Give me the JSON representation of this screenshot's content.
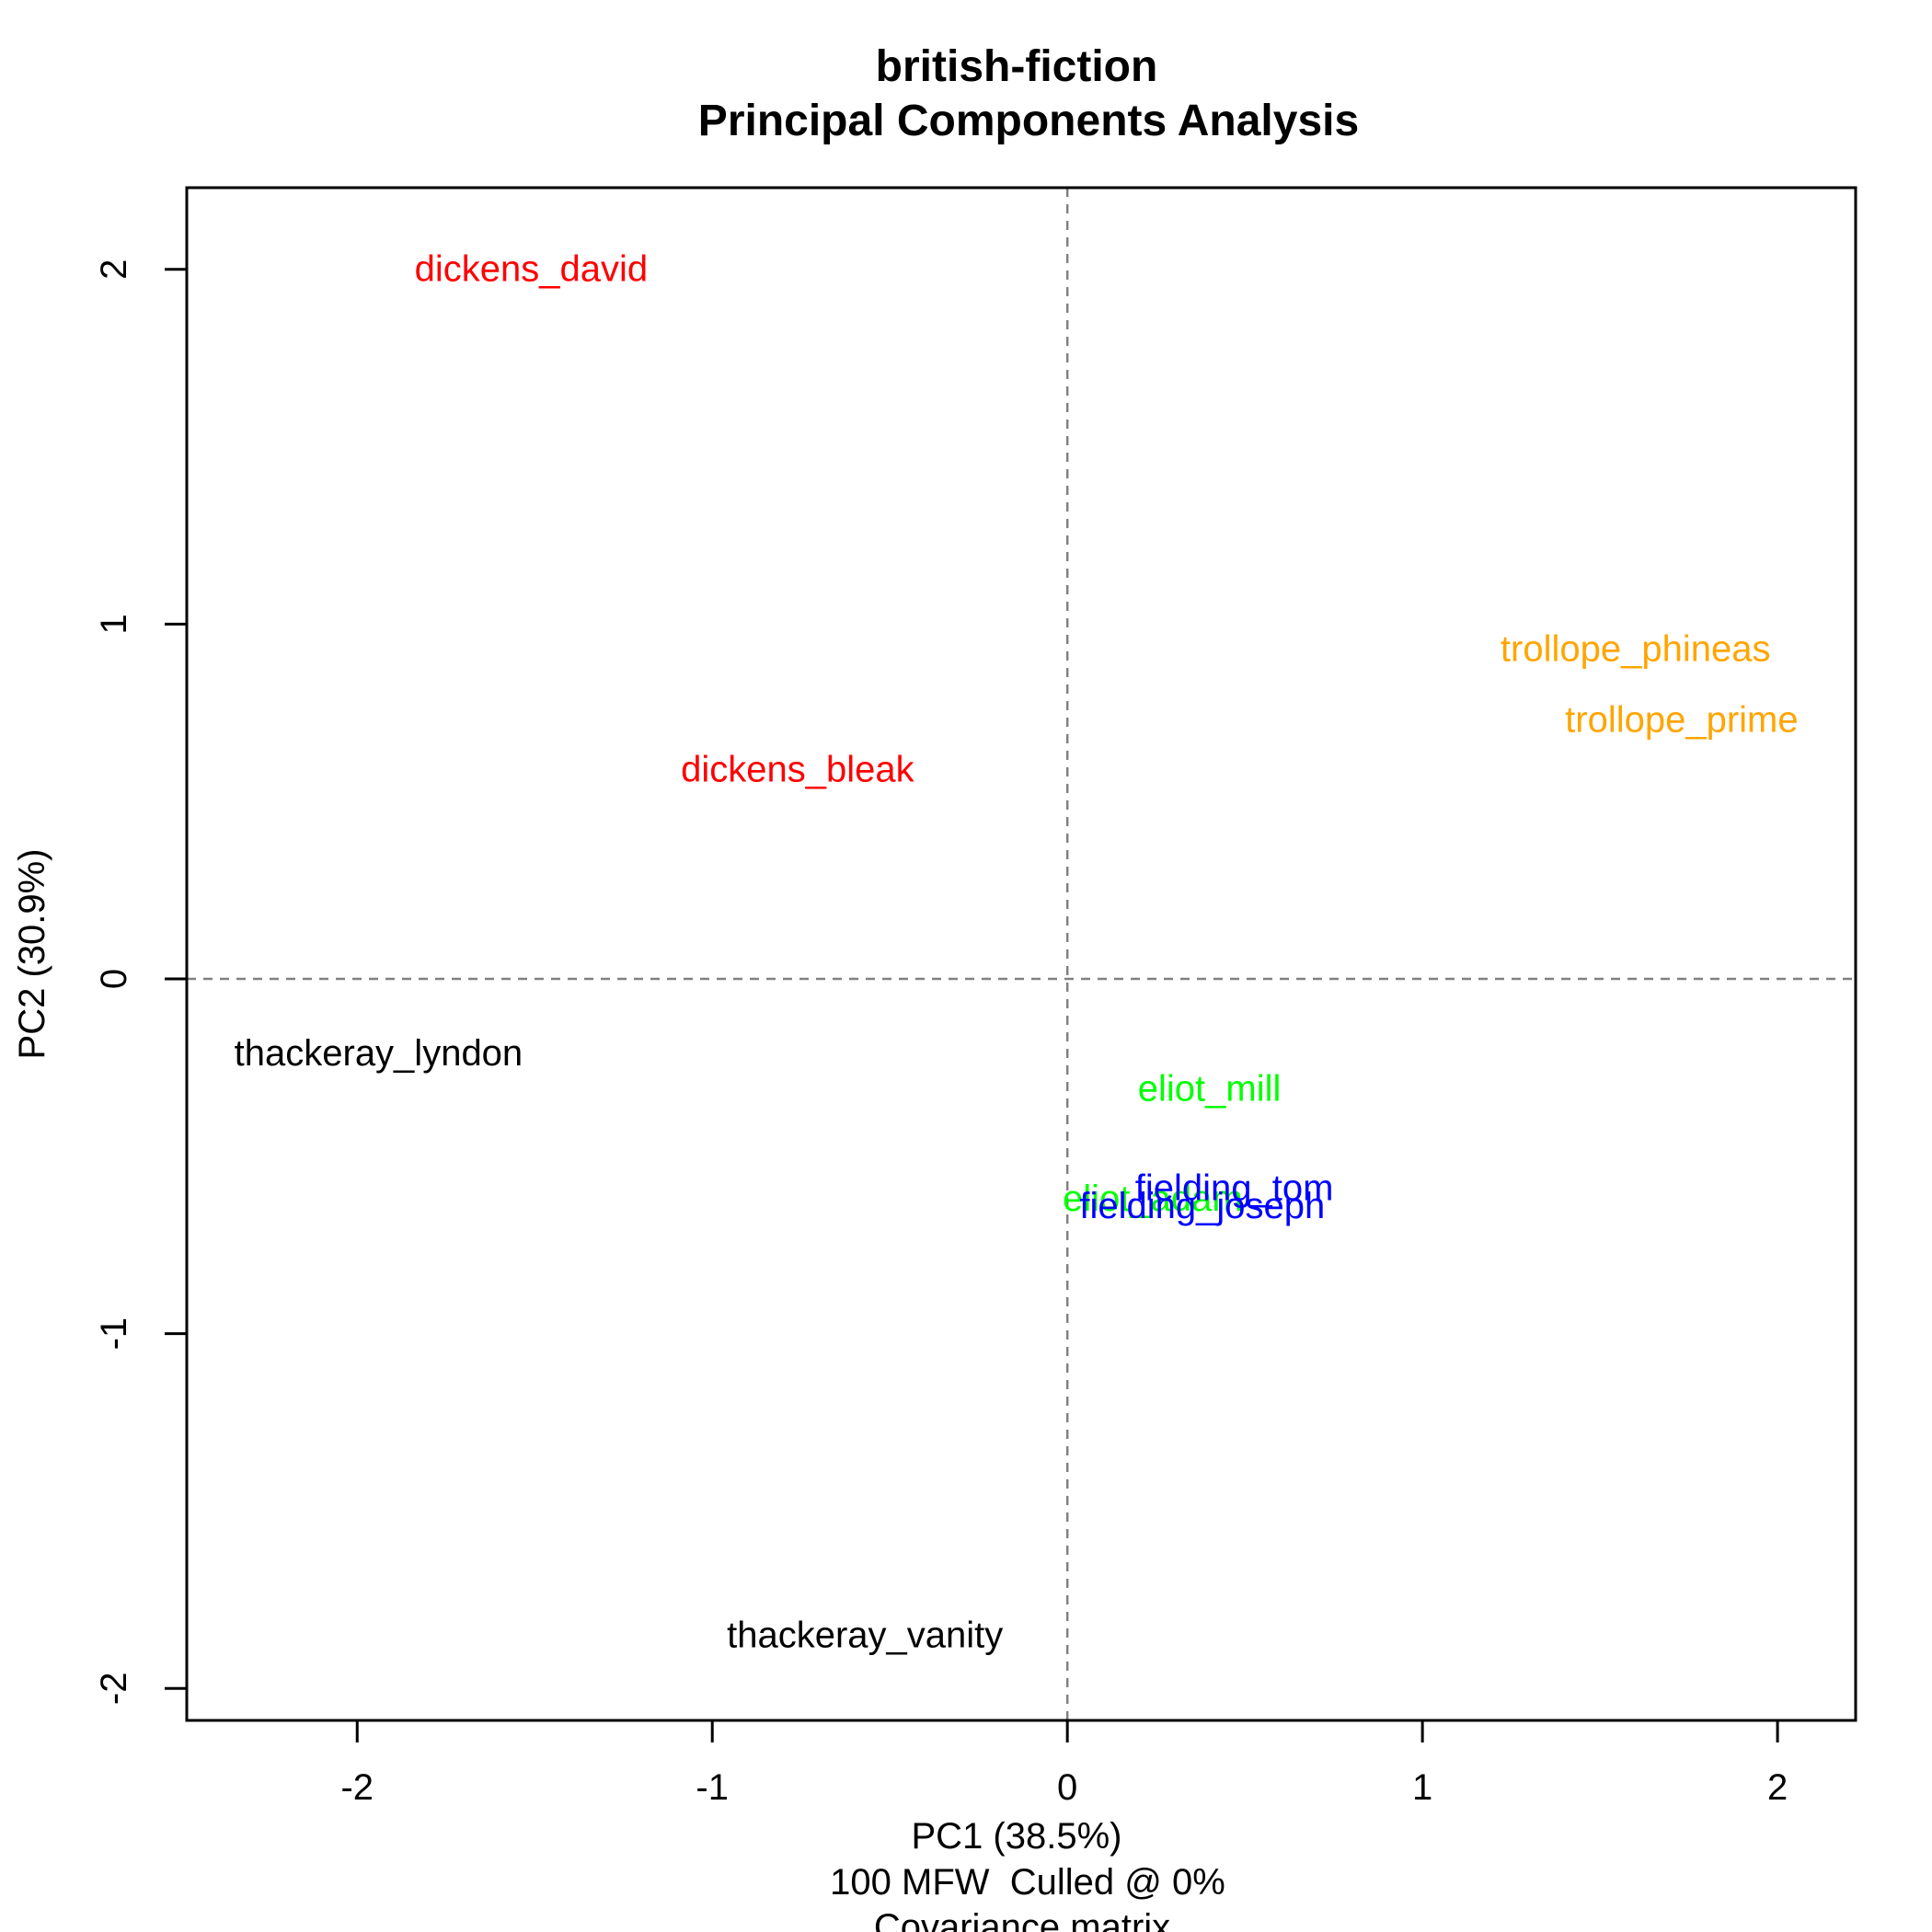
{
  "chart_data": {
    "type": "scatter",
    "title": "british-fiction",
    "subtitle": "Principal Components Analysis",
    "xlabel": "PC1 (38.5%)",
    "xlabel_extra": [
      "100 MFW  Culled @ 0%",
      "Covariance matrix"
    ],
    "ylabel": "PC2 (30.9%)",
    "xlim": [
      -2.48,
      2.22
    ],
    "ylim": [
      -2.09,
      2.23
    ],
    "xticks": [
      -2,
      -1,
      0,
      1,
      2
    ],
    "yticks": [
      -2,
      -1,
      0,
      1,
      2
    ],
    "reference_lines": {
      "x": 0,
      "y": 0,
      "style": "dashed",
      "color": "#808080"
    },
    "grid": false,
    "colors": {
      "dickens": "#ff0000",
      "trollope": "#ffa500",
      "thackeray": "#000000",
      "eliot": "#00ff00",
      "fielding": "#0000ff"
    },
    "points": [
      {
        "label": "dickens_david",
        "x": -1.51,
        "y": 2.0,
        "color": "#ff0000"
      },
      {
        "label": "dickens_bleak",
        "x": -0.76,
        "y": 0.59,
        "color": "#ff0000"
      },
      {
        "label": "trollope_phineas",
        "x": 1.6,
        "y": 0.93,
        "color": "#ffa500"
      },
      {
        "label": "trollope_prime",
        "x": 1.73,
        "y": 0.73,
        "color": "#ffa500"
      },
      {
        "label": "thackeray_lyndon",
        "x": -1.94,
        "y": -0.21,
        "color": "#000000"
      },
      {
        "label": "thackeray_vanity",
        "x": -0.57,
        "y": -1.85,
        "color": "#000000"
      },
      {
        "label": "eliot_mill",
        "x": 0.4,
        "y": -0.31,
        "color": "#00ff00"
      },
      {
        "label": "eliot_adam",
        "x": 0.24,
        "y": -0.62,
        "color": "#00ff00"
      },
      {
        "label": "fielding_tom",
        "x": 0.47,
        "y": -0.59,
        "color": "#0000ff"
      },
      {
        "label": "fielding_joseph",
        "x": 0.38,
        "y": -0.64,
        "color": "#0000ff"
      }
    ]
  }
}
